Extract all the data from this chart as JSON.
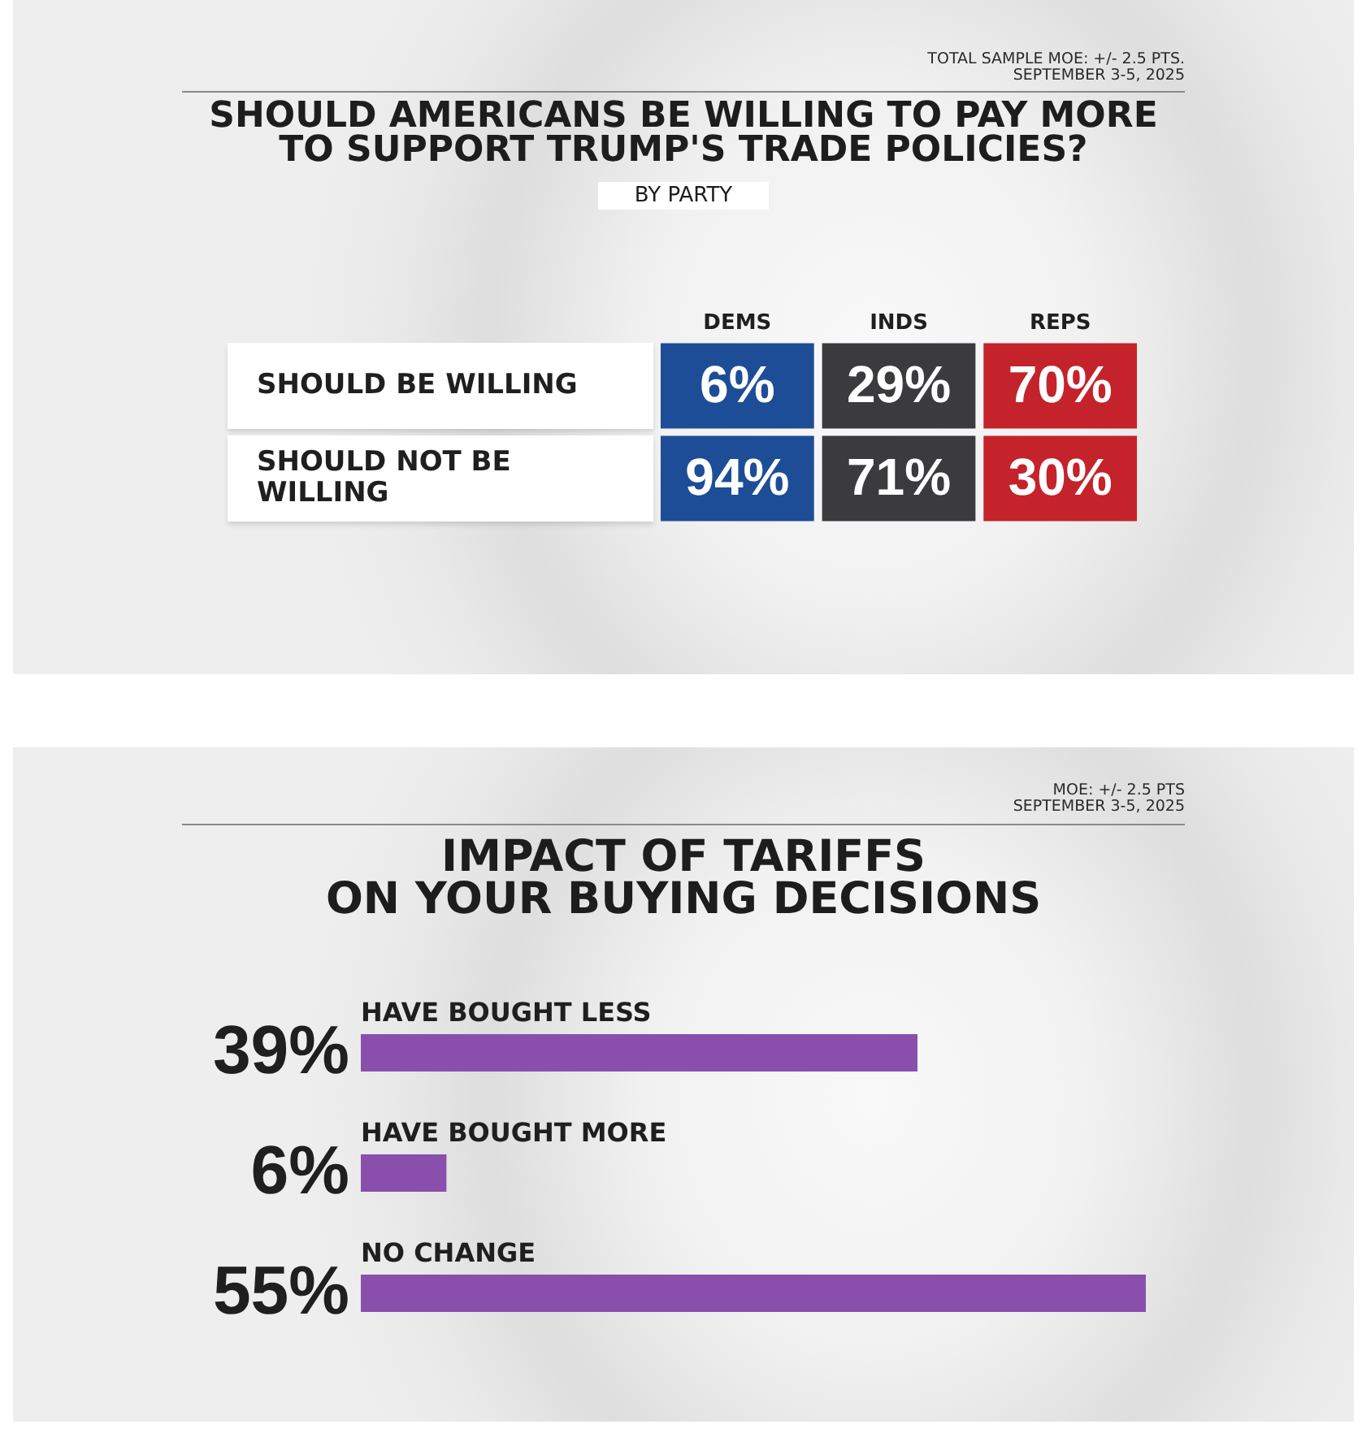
{
  "chart_data": [
    {
      "type": "heatmap",
      "title": "SHOULD AMERICANS BE WILLING TO PAY MORE\nTO SUPPORT TRUMP'S TRADE POLICIES?",
      "subtitle": "BY PARTY",
      "categories": [
        "DEMS",
        "INDS",
        "REPS"
      ],
      "y_categories": [
        "SHOULD BE WILLING",
        "SHOULD NOT BE WILLING"
      ],
      "cells": [
        [
          6,
          29,
          70
        ],
        [
          94,
          71,
          30
        ]
      ],
      "cell_labels": [
        [
          "6%",
          "29%",
          "70%"
        ],
        [
          "94%",
          "71%",
          "30%"
        ]
      ],
      "colors": [
        [
          "#1e4d97",
          "#3b3b3d",
          "#c4232b"
        ],
        [
          "#1e4d97",
          "#3b3b3d",
          "#c4232b"
        ]
      ],
      "annotations": [
        "TOTAL SAMPLE MOE: +/- 2.5 PTS.",
        "SEPTEMBER 3-5, 2025"
      ]
    },
    {
      "type": "bar",
      "orientation": "horizontal",
      "title": "IMPACT OF TARIFFS\nON YOUR BUYING DECISIONS",
      "categories": [
        "HAVE BOUGHT LESS",
        "HAVE BOUGHT MORE",
        "NO CHANGE"
      ],
      "values": [
        39,
        6,
        55
      ],
      "color": "#8a4fad",
      "value_labels": [
        "39%",
        "6%",
        "55%"
      ],
      "tick_labels": "y",
      "annotations": [
        "MOE: +/- 2.5 PTS",
        "SEPTEMBER 3-5, 2025"
      ]
    }
  ]
}
